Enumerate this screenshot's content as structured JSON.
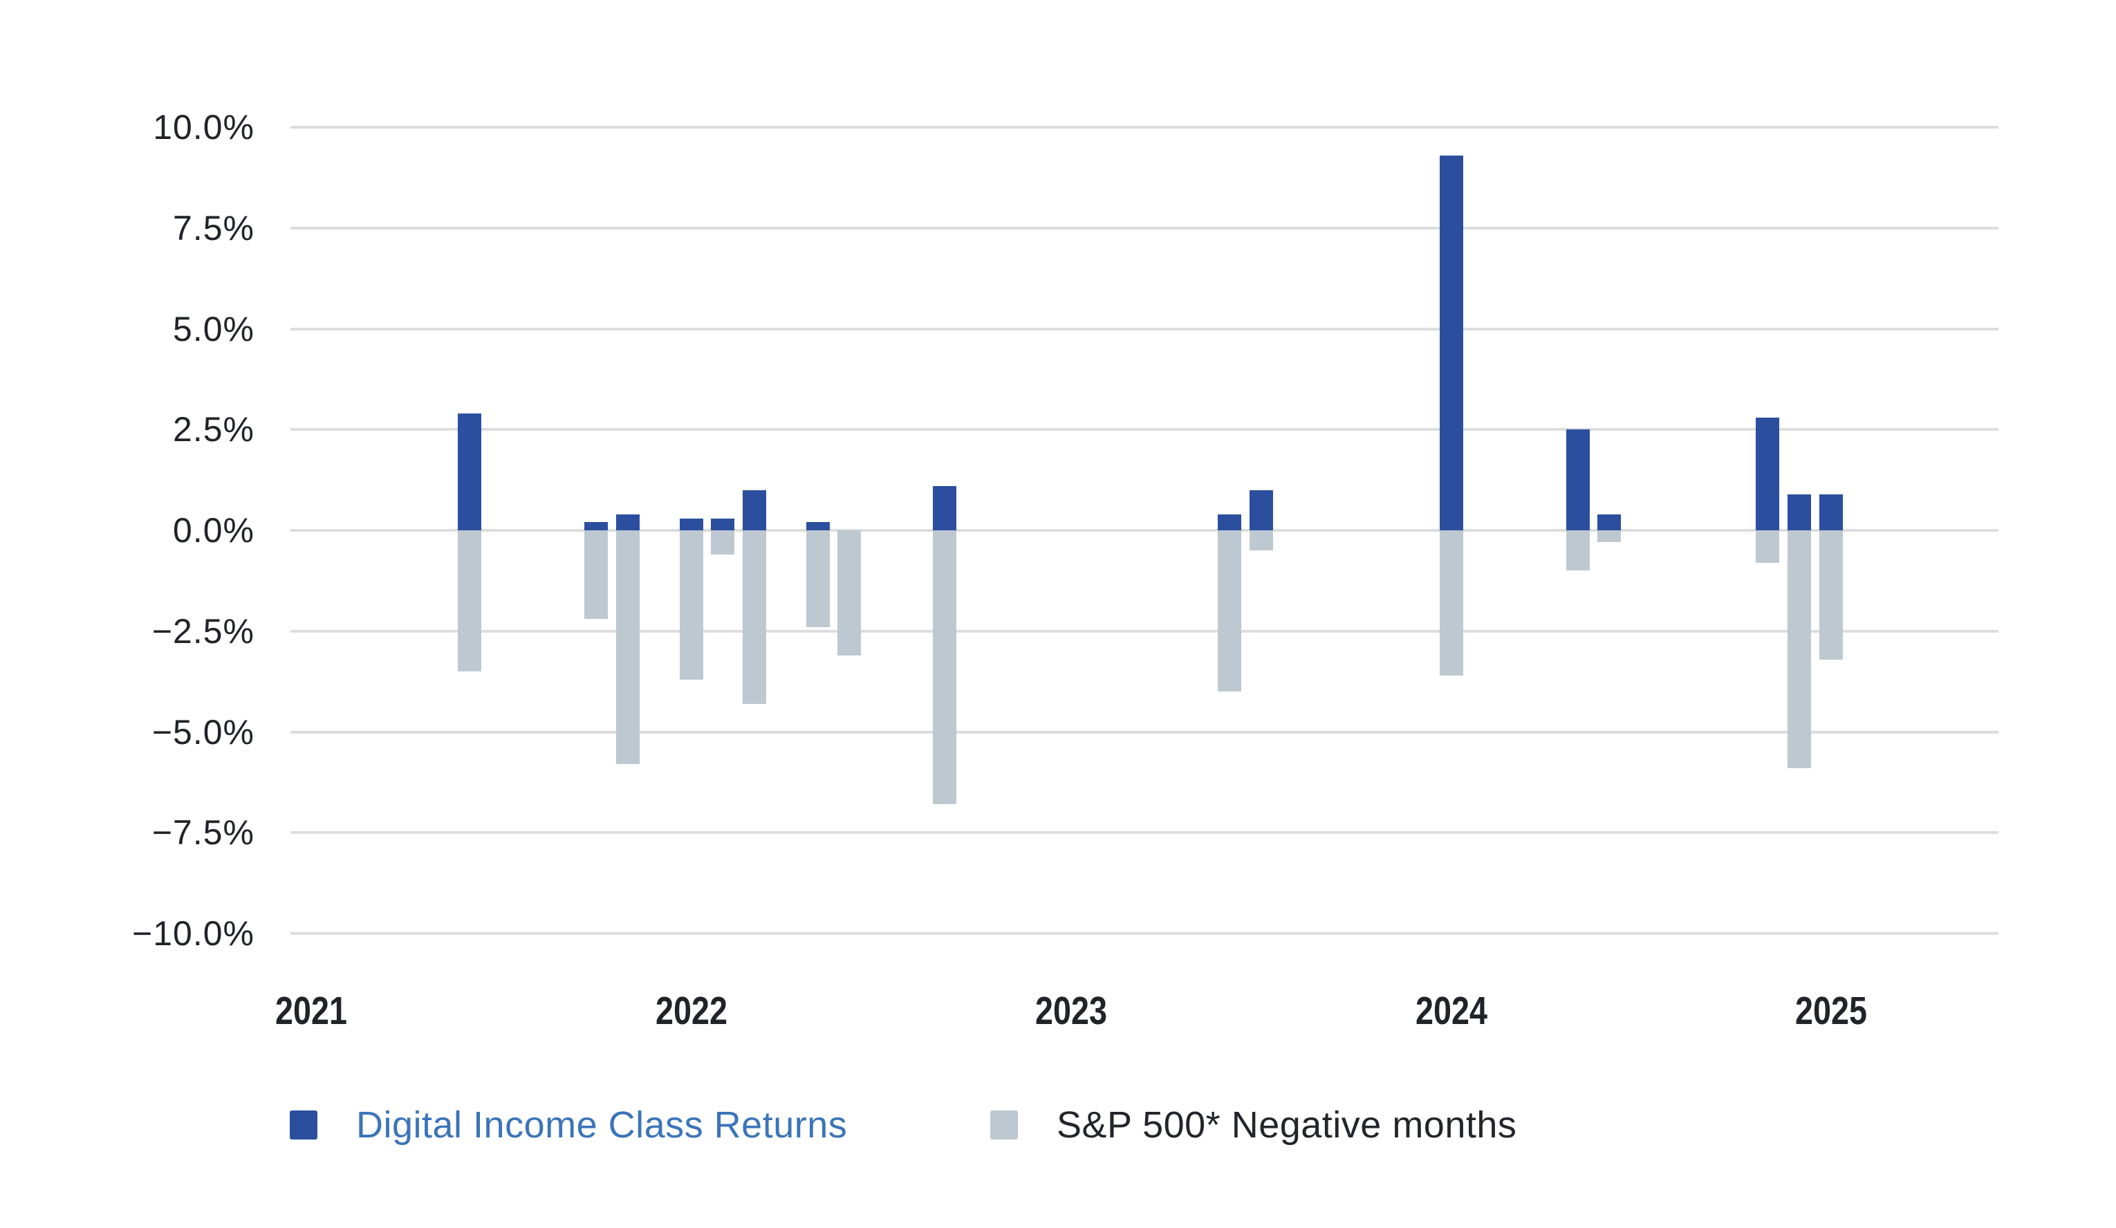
{
  "chart_data": {
    "type": "bar",
    "title": "",
    "background": "#FFFFFF",
    "grid": true,
    "y_axis": {
      "min": -10,
      "max": 10,
      "step": 2.5,
      "unit": "%",
      "tick_labels": [
        "10.0%",
        "7.5%",
        "5.0%",
        "2.5%",
        "0.0%",
        "−2.5%",
        "−5.0%",
        "−7.5%",
        "−10.0%"
      ]
    },
    "x_axis": {
      "tick_labels": [
        "2021",
        "2022",
        "2023",
        "2024",
        "2025"
      ],
      "months_per_year": 12
    },
    "legend": {
      "position": "bottom",
      "items": [
        {
          "label": "Digital Income Class Returns",
          "color": "#2B4F9E",
          "text_color": "#3B74B9"
        },
        {
          "label": "S&P 500* Negative months",
          "color": "#BDC8D0",
          "text_color": "#23252B"
        }
      ]
    },
    "series": [
      {
        "key": "digital",
        "name": "Digital Income Class Returns",
        "color": "#2B4F9E"
      },
      {
        "key": "sp500",
        "name": "S&P 500* Negative months",
        "color": "#BDC8D0"
      }
    ],
    "points": [
      {
        "month_offset_from_2021": 5,
        "digital": 2.9,
        "sp500": -3.5
      },
      {
        "month_offset_from_2021": 9,
        "digital": 0.2,
        "sp500": -2.2
      },
      {
        "month_offset_from_2021": 10,
        "digital": 0.4,
        "sp500": -5.8
      },
      {
        "month_offset_from_2021": 12,
        "digital": 0.3,
        "sp500": -3.7
      },
      {
        "month_offset_from_2021": 13,
        "digital": 0.3,
        "sp500": -0.6
      },
      {
        "month_offset_from_2021": 14,
        "digital": 1.0,
        "sp500": -4.3
      },
      {
        "month_offset_from_2021": 16,
        "digital": 0.2,
        "sp500": -2.4
      },
      {
        "month_offset_from_2021": 17,
        "digital": 0.0,
        "sp500": -3.1
      },
      {
        "month_offset_from_2021": 20,
        "digital": 1.1,
        "sp500": -6.8
      },
      {
        "month_offset_from_2021": 29,
        "digital": 0.4,
        "sp500": -4.0
      },
      {
        "month_offset_from_2021": 30,
        "digital": 1.0,
        "sp500": -0.5
      },
      {
        "month_offset_from_2021": 36,
        "digital": 9.3,
        "sp500": -3.6
      },
      {
        "month_offset_from_2021": 40,
        "digital": 2.5,
        "sp500": -1.0
      },
      {
        "month_offset_from_2021": 41,
        "digital": 0.4,
        "sp500": -0.3
      },
      {
        "month_offset_from_2021": 46,
        "digital": 2.8,
        "sp500": -0.8
      },
      {
        "month_offset_from_2021": 47,
        "digital": 0.9,
        "sp500": -5.9
      },
      {
        "month_offset_from_2021": 48,
        "digital": 0.9,
        "sp500": -3.2
      }
    ],
    "colors": {
      "gridline": "#DCDDDE",
      "axis_text": "#212329",
      "background": "#FFFFFF"
    }
  }
}
